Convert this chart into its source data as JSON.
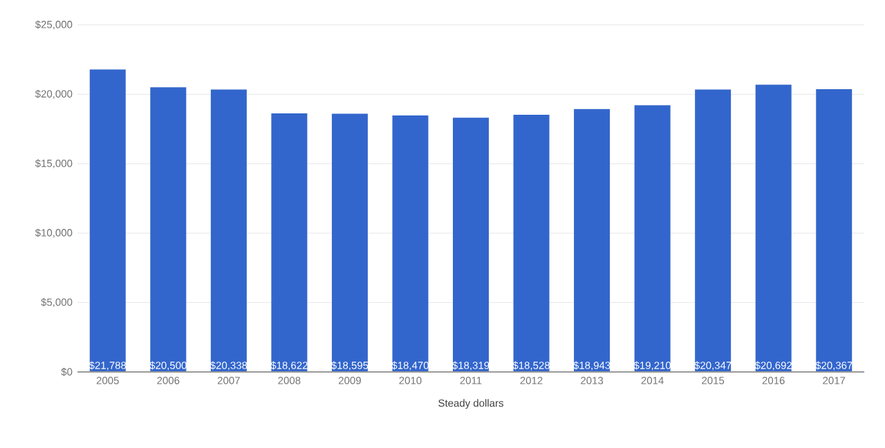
{
  "chart_data": {
    "type": "bar",
    "xlabel": "Steady dollars",
    "categories": [
      "2005",
      "2006",
      "2007",
      "2008",
      "2009",
      "2010",
      "2011",
      "2012",
      "2013",
      "2014",
      "2015",
      "2016",
      "2017"
    ],
    "values": [
      21788,
      20500,
      20338,
      18622,
      18595,
      18470,
      18319,
      18528,
      18943,
      19210,
      20347,
      20692,
      20367
    ],
    "value_labels": [
      "$21,788",
      "$20,500",
      "$20,338",
      "$18,622",
      "$18,595",
      "$18,470",
      "$18,319",
      "$18,528",
      "$18,943",
      "$19,210",
      "$20,347",
      "$20,692",
      "$20,367"
    ],
    "color": "#3366cc",
    "ylim": [
      0,
      25000
    ],
    "yticks": [
      {
        "value": 0,
        "label": "$0"
      },
      {
        "value": 5000,
        "label": "$5,000"
      },
      {
        "value": 10000,
        "label": "$10,000"
      },
      {
        "value": 15000,
        "label": "$15,000"
      },
      {
        "value": 20000,
        "label": "$20,000"
      },
      {
        "value": 25000,
        "label": "$25,000"
      }
    ],
    "grid": "y"
  }
}
